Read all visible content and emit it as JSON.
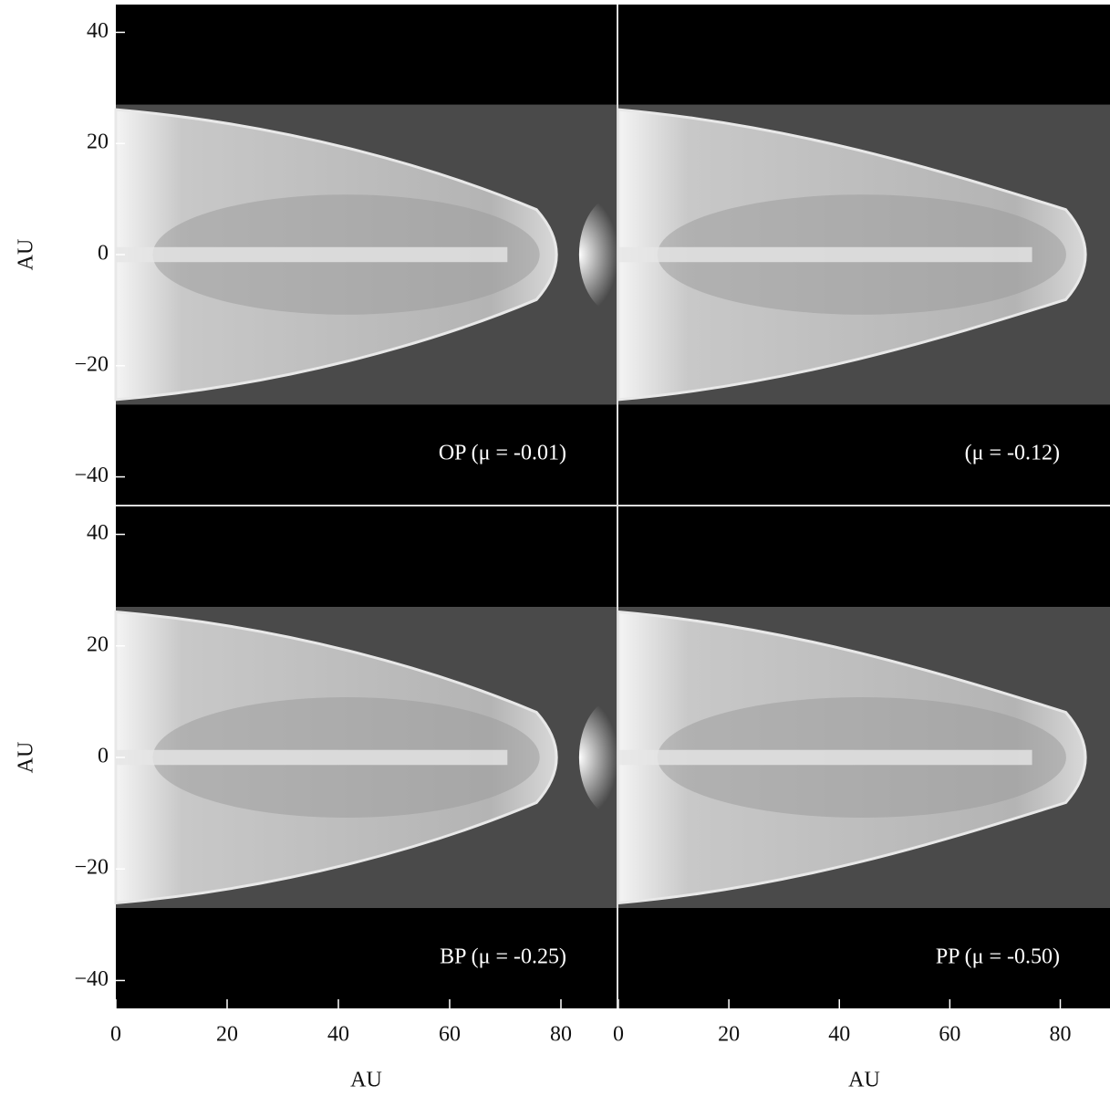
{
  "chart_data": [
    {
      "type": "image",
      "label": "OP (μ = -0.01)",
      "xlim": [
        0,
        90
      ],
      "ylim": [
        -45,
        45
      ],
      "ylabel": "AU",
      "yticks": [
        {
          "value": -40,
          "label": "−40"
        },
        {
          "value": -20,
          "label": "−20"
        },
        0,
        20,
        40
      ]
    },
    {
      "type": "image",
      "label": "(μ = -0.12)",
      "xlim": [
        0,
        89
      ],
      "ylim": [
        -45,
        45
      ]
    },
    {
      "type": "image",
      "label": "BP (μ = -0.25)",
      "xlim": [
        0,
        90
      ],
      "ylim": [
        -45,
        45
      ],
      "ylabel": "AU",
      "xlabel": "AU",
      "yticks": [
        {
          "value": -40,
          "label": "−40"
        },
        {
          "value": -20,
          "label": "−20"
        },
        0,
        20,
        40
      ],
      "xticks": [
        0,
        20,
        40,
        60,
        80
      ]
    },
    {
      "type": "image",
      "label": "PP (μ = -0.50)",
      "xlim": [
        0,
        89
      ],
      "ylim": [
        -45,
        45
      ],
      "xlabel": "AU",
      "xticks": [
        0,
        20,
        40,
        60,
        80
      ]
    }
  ]
}
